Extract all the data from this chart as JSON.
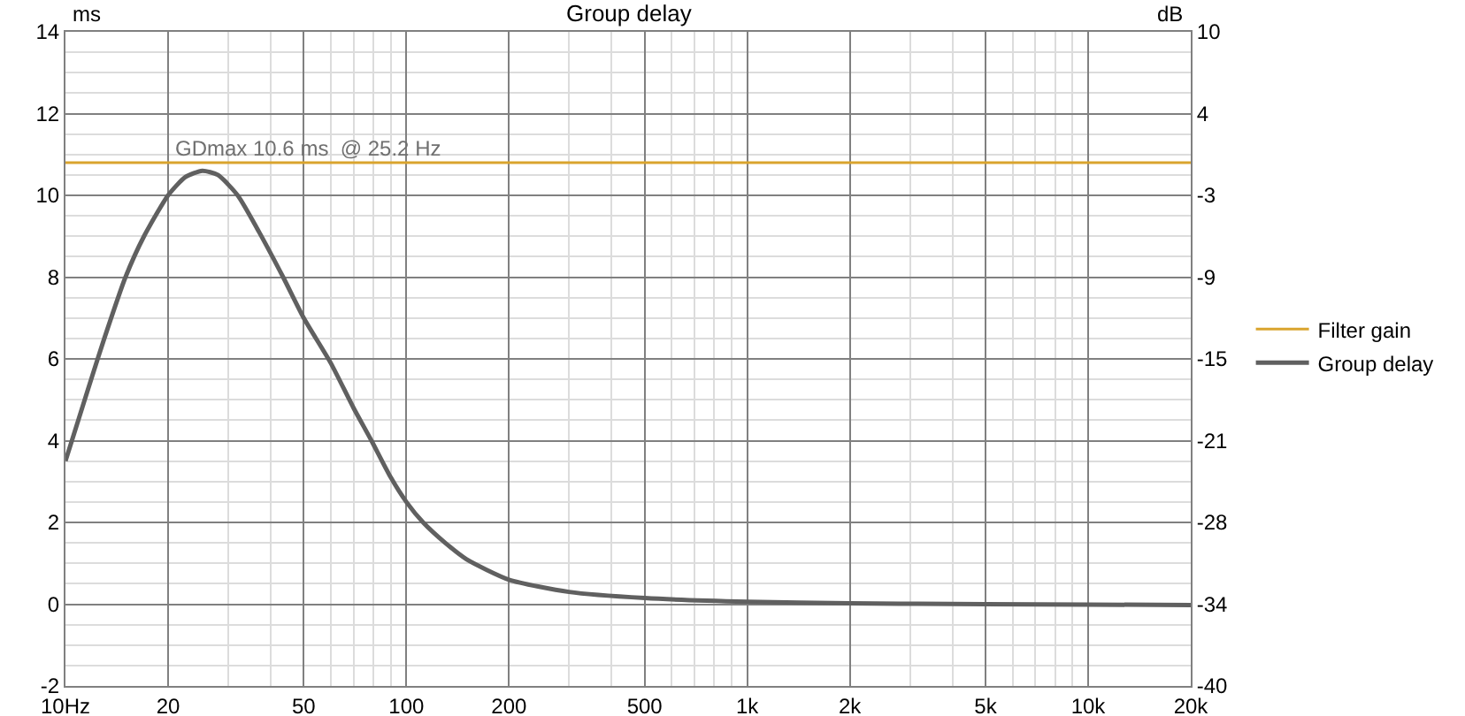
{
  "chart_data": {
    "type": "line",
    "title": "Group delay",
    "ylabel": "ms",
    "y2label": "dB",
    "log": "x",
    "grid": true,
    "legend": "right",
    "line_style": "solid",
    "marker": "none",
    "xlim": [
      10,
      20000
    ],
    "xticks": [
      {
        "value": 10,
        "label": "10Hz"
      },
      20,
      50,
      100,
      200,
      500,
      {
        "value": 1000,
        "label": "1k"
      },
      {
        "value": 2000,
        "label": "2k"
      },
      {
        "value": 5000,
        "label": "5k"
      },
      {
        "value": 10000,
        "label": "10k"
      },
      {
        "value": 20000,
        "label": "20k"
      }
    ],
    "ylim": [
      -2,
      14
    ],
    "yticks": [
      -2,
      0,
      2,
      4,
      6,
      8,
      10,
      12,
      14
    ],
    "y2lim": [
      -40,
      10
    ],
    "y2ticks": [
      {
        "value": -40,
        "label": "-40"
      },
      {
        "value": -33.75,
        "label": "-34"
      },
      {
        "value": -27.5,
        "label": "-28"
      },
      {
        "value": -21.25,
        "label": "-21"
      },
      {
        "value": -15,
        "label": "-15"
      },
      {
        "value": -8.75,
        "label": "-9"
      },
      {
        "value": -2.5,
        "label": "-3"
      },
      {
        "value": 3.75,
        "label": "4"
      },
      {
        "value": 10,
        "label": "10"
      }
    ],
    "annotations": [
      {
        "text": "GDmax 10.6 ms  @ 25.2 Hz",
        "x": 25.2,
        "y": 10.6
      }
    ],
    "series": [
      {
        "name": "Filter gain",
        "color": "#d9a42e",
        "axis": "y2",
        "x": [
          10,
          20000
        ],
        "values": [
          0,
          0
        ]
      },
      {
        "name": "Group delay",
        "color": "#606060",
        "x": [
          10,
          11,
          12,
          13,
          15,
          17,
          20,
          22.5,
          25.2,
          28,
          32,
          37,
          43.5,
          50,
          60,
          70,
          79,
          90,
          100,
          112,
          130,
          150,
          200,
          300,
          500,
          1000,
          2000,
          5000,
          10000,
          20000
        ],
        "values": [
          3.5,
          4.6,
          5.6,
          6.5,
          8.0,
          9.0,
          10.0,
          10.45,
          10.6,
          10.5,
          10.0,
          9.1,
          8.0,
          7.0,
          5.9,
          4.8,
          4.0,
          3.1,
          2.5,
          2.0,
          1.5,
          1.1,
          0.6,
          0.3,
          0.15,
          0.06,
          0.02,
          0.0,
          -0.01,
          -0.02
        ]
      }
    ]
  }
}
